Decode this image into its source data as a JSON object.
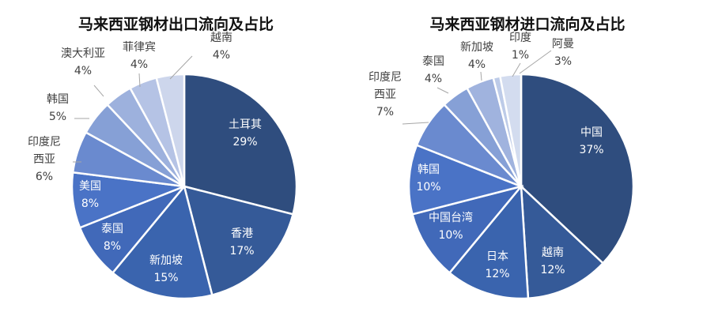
{
  "chart_data": [
    {
      "type": "pie",
      "title": "马来西亚钢材出口流向及占比",
      "slices": [
        {
          "label": "土耳其",
          "value": 29,
          "value_label": "29%",
          "color": "#2F4D7E"
        },
        {
          "label": "香港",
          "value": 17,
          "value_label": "17%",
          "color": "#355A98"
        },
        {
          "label": "新加坡",
          "value": 15,
          "value_label": "15%",
          "color": "#3A64AE"
        },
        {
          "label": "泰国",
          "value": 8,
          "value_label": "8%",
          "color": "#4169B9"
        },
        {
          "label": "美国",
          "value": 8,
          "value_label": "8%",
          "color": "#4A73C6"
        },
        {
          "label": "印度尼西亚",
          "value": 6,
          "value_label": "6%",
          "color": "#6A8ACF"
        },
        {
          "label": "韩国",
          "value": 5,
          "value_label": "5%",
          "color": "#86A0D6"
        },
        {
          "label": "澳大利亚",
          "value": 4,
          "value_label": "4%",
          "color": "#9DB1DD"
        },
        {
          "label": "菲律宾",
          "value": 4,
          "value_label": "4%",
          "color": "#B5C3E5"
        },
        {
          "label": "越南",
          "value": 4,
          "value_label": "4%",
          "color": "#CDD6EC"
        }
      ]
    },
    {
      "type": "pie",
      "title": "马来西亚钢材进口流向及占比",
      "slices": [
        {
          "label": "中国",
          "value": 37,
          "value_label": "37%",
          "color": "#2F4D7E"
        },
        {
          "label": "越南",
          "value": 12,
          "value_label": "12%",
          "color": "#355A98"
        },
        {
          "label": "日本",
          "value": 12,
          "value_label": "12%",
          "color": "#3A64AE"
        },
        {
          "label": "中国台湾",
          "value": 10,
          "value_label": "10%",
          "color": "#4169B9"
        },
        {
          "label": "韩国",
          "value": 10,
          "value_label": "10%",
          "color": "#4A73C6"
        },
        {
          "label": "印度尼西亚",
          "value": 7,
          "value_label": "7%",
          "color": "#6A8ACF"
        },
        {
          "label": "泰国",
          "value": 4,
          "value_label": "4%",
          "color": "#86A0D6"
        },
        {
          "label": "新加坡",
          "value": 4,
          "value_label": "4%",
          "color": "#A0B3DE"
        },
        {
          "label": "印度",
          "value": 1,
          "value_label": "1%",
          "color": "#BDCBE8"
        },
        {
          "label": "阿曼",
          "value": 3,
          "value_label": "3%",
          "color": "#D3DCEF"
        }
      ]
    }
  ]
}
